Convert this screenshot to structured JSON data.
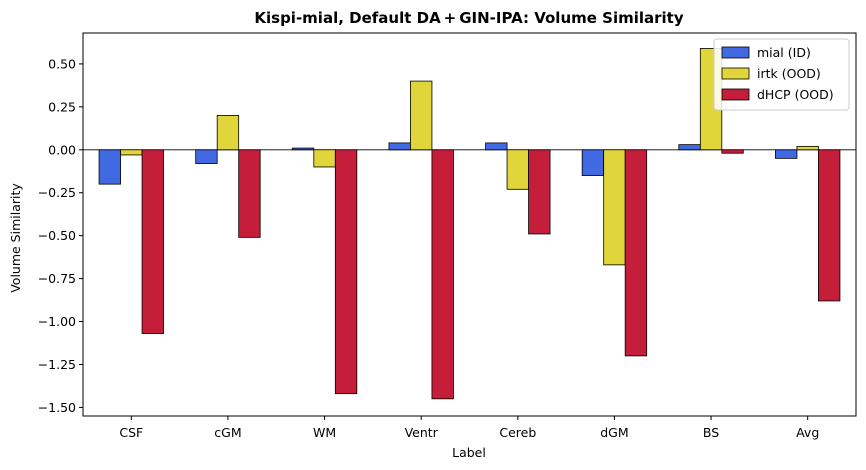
{
  "chart_data": {
    "type": "bar",
    "title": "Kispi-mial, Default DA + GIN-IPA: Volume Similarity",
    "xlabel": "Label",
    "ylabel": "Volume Similarity",
    "categories": [
      "CSF",
      "cGM",
      "WM",
      "Ventr",
      "Cereb",
      "dGM",
      "BS",
      "Avg"
    ],
    "ylim": [
      -1.55,
      0.68
    ],
    "yticks": [
      0.5,
      0.25,
      0.0,
      -0.25,
      -0.5,
      -0.75,
      -1.0,
      -1.25,
      -1.5
    ],
    "ytick_labels": [
      "0.50",
      "0.25",
      "0.00",
      "−0.25",
      "−0.50",
      "−0.75",
      "−1.00",
      "−1.25",
      "−1.50"
    ],
    "grid": false,
    "zero_line": true,
    "legend_position": "top-right",
    "series": [
      {
        "name": "mial (ID)",
        "color": "#4169E1",
        "values": [
          -0.2,
          -0.08,
          0.01,
          0.04,
          0.04,
          -0.15,
          0.03,
          -0.05
        ]
      },
      {
        "name": "irtk (OOD)",
        "color": "#E1D53C",
        "values": [
          -0.03,
          0.2,
          -0.1,
          0.4,
          -0.23,
          -0.67,
          0.59,
          0.02
        ]
      },
      {
        "name": "dHCP (OOD)",
        "color": "#C41E3A",
        "values": [
          -1.07,
          -0.51,
          -1.42,
          -1.45,
          -0.49,
          -1.2,
          -0.02,
          -0.88
        ]
      }
    ]
  }
}
